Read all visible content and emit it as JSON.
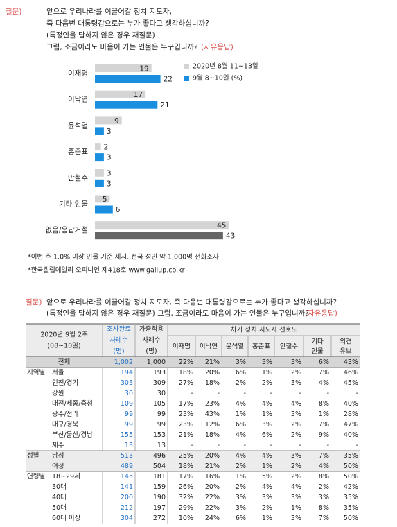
{
  "header": {
    "label": "질문)",
    "lines": [
      "앞으로 우리나라를 이끌어갈 정치 지도자,",
      "즉 다음번 대통령감으로는 누가 좋다고 생각하십니까?",
      "(특정인을 답하지 않은 경우 재질문)",
      "그럼, 조금이라도 마음이 가는 인물은 누구입니까?"
    ],
    "tag": "(자유응답)"
  },
  "chart_data": {
    "type": "hbar",
    "categories": [
      "이재명",
      "이낙연",
      "윤석열",
      "홍준표",
      "안철수",
      "기타 인물",
      "없음/응답거절"
    ],
    "series": [
      {
        "name": "2020년 8월 11~13일",
        "color": "#d4d4d4",
        "values": [
          19,
          17,
          9,
          2,
          3,
          5,
          45
        ]
      },
      {
        "name": "9월 8~10일 (%)",
        "color": "#1a8fe0",
        "values": [
          22,
          21,
          3,
          3,
          3,
          6,
          43
        ],
        "colors": [
          "#1a8fe0",
          "#1a8fe0",
          "#1a8fe0",
          "#1a8fe0",
          "#1a8fe0",
          "#1a8fe0",
          "#666666"
        ]
      }
    ]
  },
  "notes": [
    "*이번 주 1.0% 이상 인물 기준 제시. 전국 성인 약 1,000명 전화조사",
    "*한국갤럽데일리 오피니언 제418호 www.gallup.co.kr"
  ],
  "table": {
    "question": {
      "label": "질문)",
      "lines": [
        "앞으로 우리나라를 이끌어갈 정치 지도자, 즉 다음번 대통령감으로는 누가 좋다고 생각하십니까?",
        "(특정인을 답하지 않은 경우 재질문) 그럼, 조금이라도 마음이 가는 인물은 누구입니까?"
      ],
      "tag": "(자유응답)"
    },
    "period": [
      "2020년 9월 2주",
      "(08~10일)"
    ],
    "sample_cols": [
      [
        "조사완료",
        "사례수",
        "(명)"
      ],
      [
        "가중적용",
        "사례수",
        "(명)"
      ]
    ],
    "group_header": "차기 정치 지도자 선호도",
    "items": [
      [
        "이재명"
      ],
      [
        "이낙연"
      ],
      [
        "윤석열"
      ],
      [
        "홍준표"
      ],
      [
        "안철수"
      ],
      [
        "기타",
        "인물"
      ],
      [
        "의견",
        "유보"
      ]
    ],
    "rows": [
      {
        "label": "전체",
        "cells": [
          "1,002",
          "1,000",
          "22%",
          "21%",
          "3%",
          "3%",
          "3%",
          "6%",
          "43%"
        ]
      },
      {
        "group": "지역별",
        "label": "서울",
        "cells": [
          "194",
          "193",
          "18%",
          "20%",
          "6%",
          "1%",
          "2%",
          "7%",
          "46%"
        ]
      },
      {
        "label": "인천/경기",
        "cells": [
          "303",
          "309",
          "27%",
          "18%",
          "2%",
          "2%",
          "3%",
          "4%",
          "45%"
        ]
      },
      {
        "label": "강원",
        "cells": [
          "30",
          "30",
          "-",
          "-",
          "-",
          "-",
          "-",
          "-",
          "-"
        ]
      },
      {
        "label": "대전/세종/충청",
        "cells": [
          "109",
          "105",
          "17%",
          "23%",
          "4%",
          "4%",
          "4%",
          "8%",
          "40%"
        ]
      },
      {
        "label": "광주/전라",
        "cells": [
          "99",
          "99",
          "23%",
          "43%",
          "1%",
          "1%",
          "3%",
          "1%",
          "28%"
        ]
      },
      {
        "label": "대구/경북",
        "cells": [
          "99",
          "99",
          "23%",
          "12%",
          "6%",
          "3%",
          "2%",
          "7%",
          "47%"
        ]
      },
      {
        "label": "부산/울산/경남",
        "cells": [
          "155",
          "153",
          "21%",
          "18%",
          "4%",
          "6%",
          "2%",
          "9%",
          "40%"
        ]
      },
      {
        "label": "제주",
        "cells": [
          "13",
          "13",
          "-",
          "-",
          "-",
          "-",
          "-",
          "-",
          "-"
        ]
      },
      {
        "group": "성별",
        "label": "남성",
        "cells": [
          "513",
          "496",
          "25%",
          "20%",
          "4%",
          "4%",
          "3%",
          "7%",
          "35%"
        ]
      },
      {
        "label": "여성",
        "cells": [
          "489",
          "504",
          "18%",
          "21%",
          "2%",
          "1%",
          "2%",
          "4%",
          "50%"
        ]
      },
      {
        "group": "연령별",
        "label": "18~29세",
        "cells": [
          "145",
          "181",
          "17%",
          "16%",
          "1%",
          "5%",
          "2%",
          "8%",
          "50%"
        ]
      },
      {
        "label": "30대",
        "cells": [
          "141",
          "159",
          "26%",
          "20%",
          "2%",
          "4%",
          "4%",
          "2%",
          "42%"
        ]
      },
      {
        "label": "40대",
        "cells": [
          "200",
          "190",
          "32%",
          "22%",
          "3%",
          "3%",
          "3%",
          "3%",
          "35%"
        ]
      },
      {
        "label": "50대",
        "cells": [
          "212",
          "197",
          "29%",
          "22%",
          "3%",
          "2%",
          "1%",
          "8%",
          "35%"
        ]
      },
      {
        "label": "60대 이상",
        "cells": [
          "304",
          "272",
          "10%",
          "24%",
          "6%",
          "1%",
          "3%",
          "7%",
          "50%"
        ]
      }
    ]
  }
}
